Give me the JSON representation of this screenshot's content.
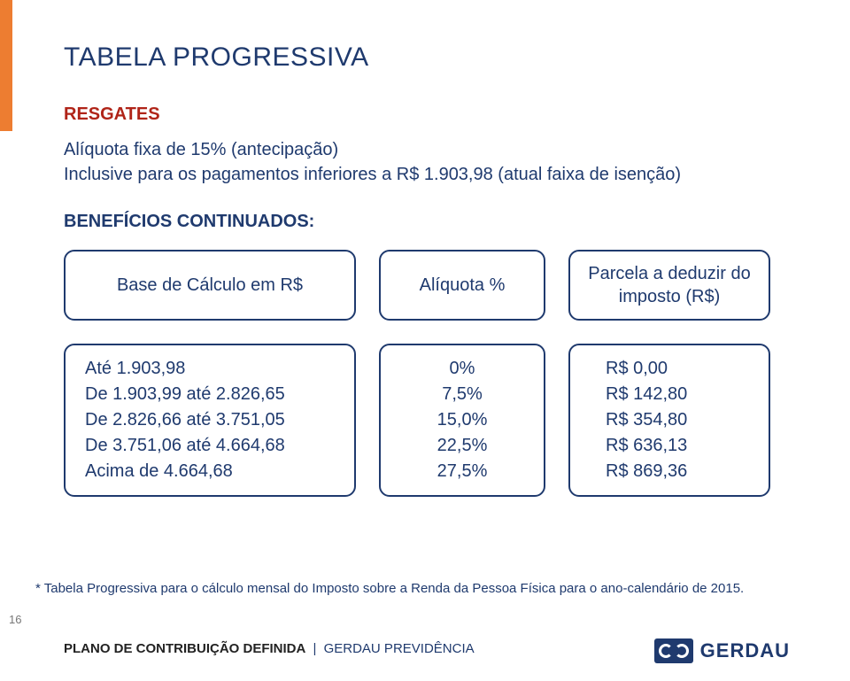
{
  "colors": {
    "accent_bar": "#ed7d31",
    "title": "#1f3a6e",
    "subtitle_red": "#b02418",
    "primary_blue": "#1f3a6e",
    "box_border": "#1f3a6e",
    "background": "#ffffff",
    "page_num_gray": "#777777"
  },
  "typography": {
    "title_fontsize": 30,
    "subtitle_fontsize": 20,
    "body_fontsize": 20,
    "footnote_fontsize": 15,
    "footer_fontsize": 15,
    "font_family": "Verdana"
  },
  "layout": {
    "slide_width": 960,
    "slide_height": 769,
    "box_border_radius": 12,
    "box_border_width": 2
  },
  "title": "TABELA PROGRESSIVA",
  "section_resgates": {
    "heading": "RESGATES",
    "line1": "Alíquota fixa de 15% (antecipação)",
    "line2": "Inclusive para os pagamentos inferiores a R$ 1.903,98 (atual faixa de isenção)"
  },
  "section_beneficios": {
    "heading": "BENEFÍCIOS CONTINUADOS:"
  },
  "table": {
    "headers": {
      "a": "Base de Cálculo em R$",
      "b": "Alíquota %",
      "c": "Parcela a deduzir do imposto (R$)"
    },
    "col_a": [
      "Até 1.903,98",
      "De 1.903,99 até 2.826,65",
      "De 2.826,66 até 3.751,05",
      "De 3.751,06 até 4.664,68",
      "Acima de 4.664,68"
    ],
    "col_b": [
      "0%",
      "7,5%",
      "15,0%",
      "22,5%",
      "27,5%"
    ],
    "col_c": [
      "R$ 0,00",
      "R$ 142,80",
      "R$ 354,80",
      "R$ 636,13",
      "R$ 869,36"
    ]
  },
  "footnote": "* Tabela Progressiva para o cálculo mensal do Imposto sobre a Renda da Pessoa Física para o ano-calendário de 2015.",
  "page_number": "16",
  "footer": {
    "bold": "PLANO DE CONTRIBUIÇÃO DEFINIDA",
    "separator": "|",
    "company": "GERDAU PREVIDÊNCIA"
  },
  "logo": {
    "name": "GERDAU",
    "mark_bg": "#1f3a6e"
  }
}
